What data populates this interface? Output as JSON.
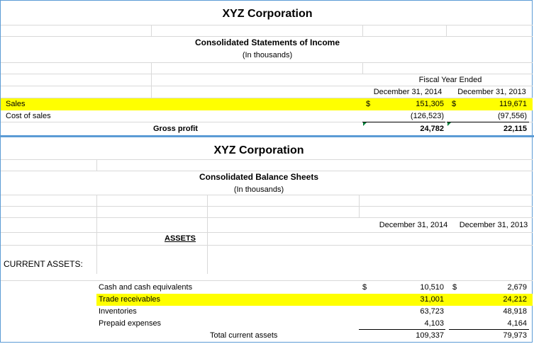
{
  "income": {
    "company": "XYZ Corporation",
    "statement_title": "Consolidated Statements of Income",
    "units": "(In thousands)",
    "period_header": "Fiscal Year Ended",
    "col1_header": "December 31, 2014",
    "col2_header": "December 31, 2013",
    "rows": [
      {
        "label": "Sales",
        "cur1": "$",
        "v1": "151,305",
        "cur2": "$",
        "v2": "119,671",
        "highlight": true
      },
      {
        "label": "Cost of sales",
        "cur1": "",
        "v1": "(126,523)",
        "cur2": "",
        "v2": "(97,556)",
        "highlight": false
      },
      {
        "label": "Gross profit",
        "cur1": "",
        "v1": "24,782",
        "cur2": "",
        "v2": "22,115",
        "highlight": false
      }
    ]
  },
  "balance": {
    "company": "XYZ Corporation",
    "statement_title": "Consolidated Balance Sheets",
    "units": "(In thousands)",
    "col1_header": "December 31, 2014",
    "col2_header": "December 31, 2013",
    "assets_heading": "ASSETS",
    "current_assets_label": "CURRENT ASSETS:",
    "rows": [
      {
        "label": "Cash and cash equivalents",
        "cur1": "$",
        "v1": "10,510",
        "cur2": "$",
        "v2": "2,679",
        "highlight": false
      },
      {
        "label": "Trade receivables",
        "cur1": "",
        "v1": "31,001",
        "cur2": "",
        "v2": "24,212",
        "highlight": true
      },
      {
        "label": "Inventories",
        "cur1": "",
        "v1": "63,723",
        "cur2": "",
        "v2": "48,918",
        "highlight": false
      },
      {
        "label": "Prepaid expenses",
        "cur1": "",
        "v1": "4,103",
        "cur2": "",
        "v2": "4,164",
        "highlight": false
      }
    ],
    "total_label": "Total current assets",
    "total_v1": "109,337",
    "total_v2": "79,973"
  },
  "colors": {
    "highlight": "#ffff00",
    "frame_border": "#5b9bd5",
    "gridline": "#d9d9d9",
    "error_triangle": "#00803a"
  }
}
